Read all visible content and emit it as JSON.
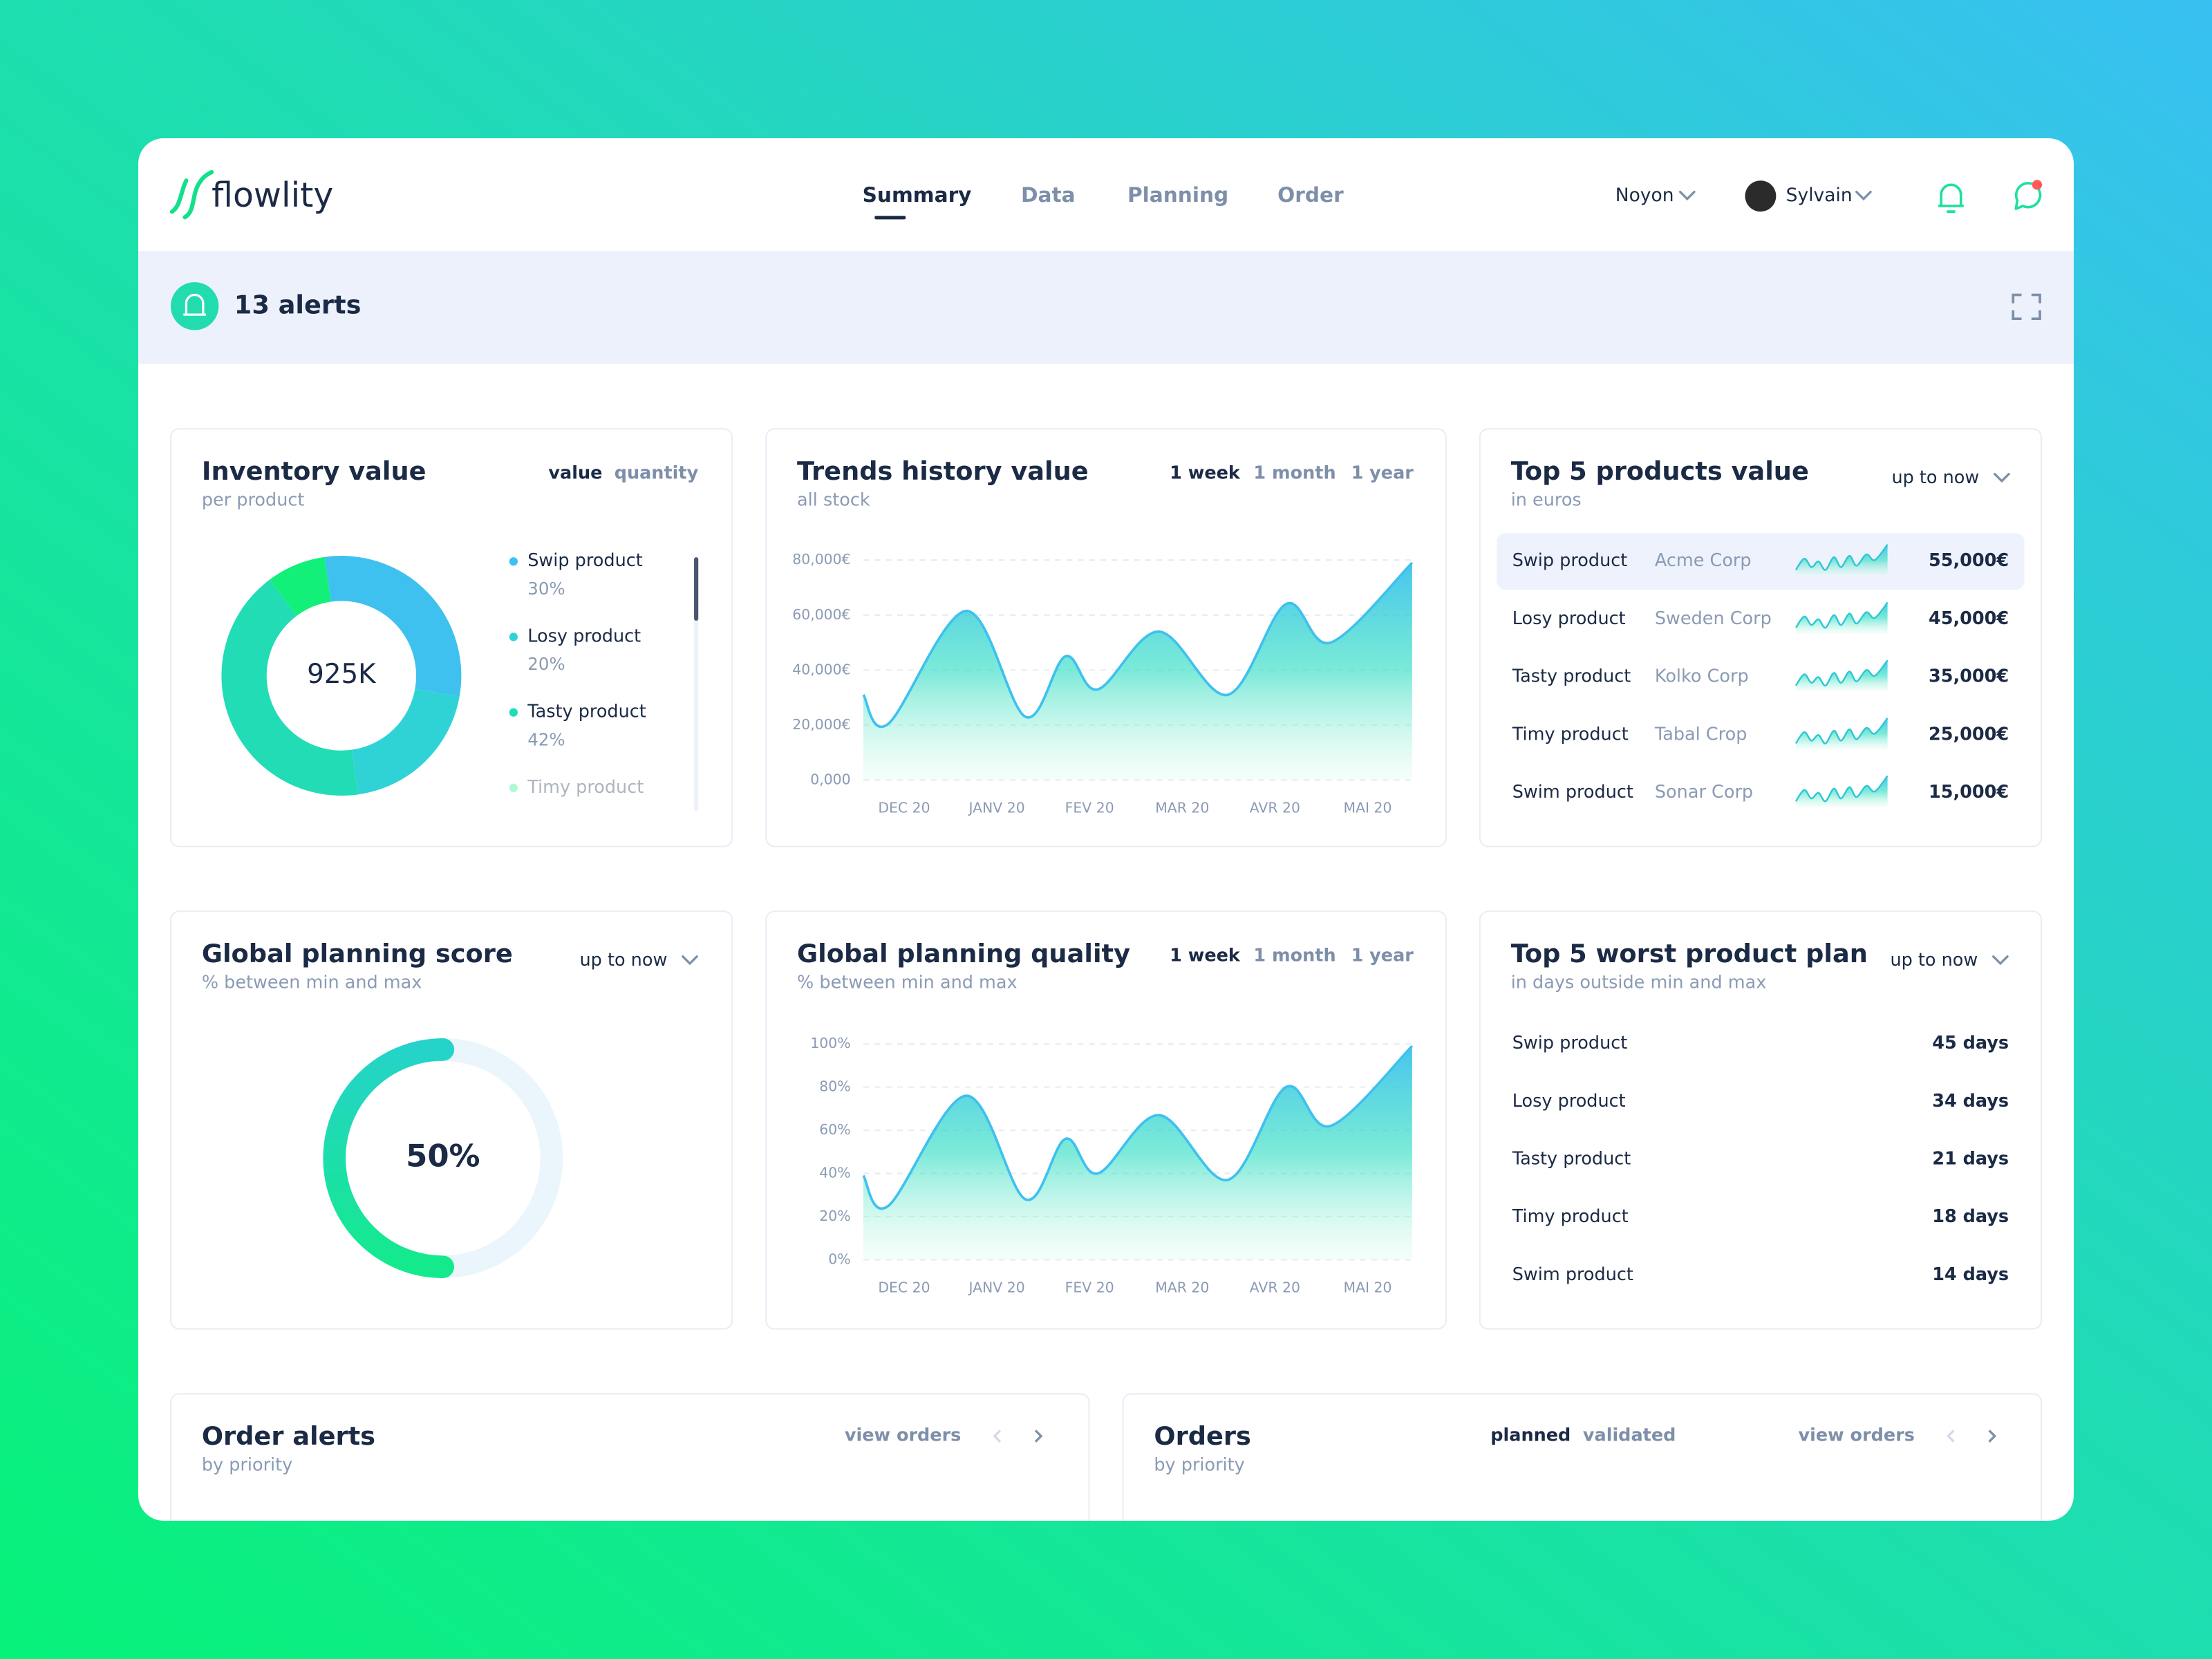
{
  "header": {
    "logo": "flowlity",
    "tabs": [
      "Summary",
      "Data",
      "Planning",
      "Order"
    ],
    "location": "Noyon",
    "user": "Sylvain"
  },
  "alerts": {
    "label": "13 alerts"
  },
  "inventory": {
    "title": "Inventory value",
    "subtitle": "per product",
    "toggles": [
      "value",
      "quantity"
    ],
    "total": "925K",
    "chart_data": {
      "type": "donut",
      "categories": [
        "Swip product",
        "Losy product",
        "Tasty product",
        "Timy product"
      ],
      "values": [
        30,
        20,
        42,
        8
      ],
      "value_labels": [
        "30%",
        "20%",
        "42%",
        null
      ],
      "colors": [
        "#3ec1ef",
        "#2fd3d6",
        "#22dcb6",
        "#12f07a"
      ]
    }
  },
  "trends": {
    "title": "Trends history value",
    "subtitle": "all stock",
    "ranges": [
      "1 week",
      "1 month",
      "1 year"
    ],
    "chart_data": {
      "type": "area",
      "categories": [
        "DEC 20",
        "JANV 20",
        "FEV 20",
        "MAR 20",
        "AVR 20",
        "MAI 20"
      ],
      "xlim": [
        -0.44,
        5.48
      ],
      "ylim": [
        0,
        80000
      ],
      "yticks": [
        {
          "value": 0,
          "label": "0,000"
        },
        {
          "value": 20000,
          "label": "20,000€"
        },
        {
          "value": 40000,
          "label": "40,000€"
        },
        {
          "value": 60000,
          "label": "60,000€"
        },
        {
          "value": 80000,
          "label": "80,000€"
        }
      ],
      "grid": true,
      "series": [
        {
          "color": "#3ec1ef",
          "x": [
            -0.44,
            -0.17,
            0.67,
            1.31,
            1.74,
            2.09,
            2.75,
            3.49,
            4.12,
            4.6,
            5.48
          ],
          "values": [
            31000,
            20500,
            61500,
            23000,
            45000,
            33000,
            54000,
            31000,
            64000,
            50000,
            79000
          ]
        }
      ]
    }
  },
  "top_products": {
    "title": "Top 5 products value",
    "subtitle": "in euros",
    "period": "up to now",
    "rows": [
      {
        "product": "Swip product",
        "company": "Acme Corp",
        "value": "55,000€"
      },
      {
        "product": "Losy product",
        "company": "Sweden Corp",
        "value": "45,000€"
      },
      {
        "product": "Tasty product",
        "company": "Kolko Corp",
        "value": "35,000€"
      },
      {
        "product": "Timy product",
        "company": "Tabal Crop",
        "value": "25,000€"
      },
      {
        "product": "Swim product",
        "company": "Sonar Corp",
        "value": "15,000€"
      }
    ]
  },
  "planning_score": {
    "title": "Global planning score",
    "subtitle": "% between min and max",
    "period": "up to now",
    "chart_data": {
      "type": "gauge",
      "value": 50,
      "value_label": "50%",
      "ylim": [
        0,
        100
      ]
    }
  },
  "planning_quality": {
    "title": "Global planning quality",
    "subtitle": "% between min and max",
    "ranges": [
      "1 week",
      "1 month",
      "1 year"
    ],
    "chart_data": {
      "type": "area",
      "categories": [
        "DEC 20",
        "JANV 20",
        "FEV 20",
        "MAR 20",
        "AVR 20",
        "MAI 20"
      ],
      "xlim": [
        -0.44,
        5.48
      ],
      "ylim": [
        0,
        100
      ],
      "yticks": [
        {
          "value": 0,
          "label": "0%"
        },
        {
          "value": 20,
          "label": "20%"
        },
        {
          "value": 40,
          "label": "40%"
        },
        {
          "value": 60,
          "label": "60%"
        },
        {
          "value": 80,
          "label": "80%"
        },
        {
          "value": 100,
          "label": "100%"
        }
      ],
      "grid": true,
      "series": [
        {
          "color": "#3ec1ef",
          "x": [
            -0.44,
            -0.17,
            0.67,
            1.31,
            1.74,
            2.09,
            2.75,
            3.49,
            4.12,
            4.6,
            5.48
          ],
          "values": [
            39,
            25,
            76,
            28,
            56,
            40,
            67,
            37,
            80,
            62,
            99
          ]
        }
      ]
    }
  },
  "worst_plan": {
    "title": "Top 5 worst product plan",
    "subtitle": "in days outside min and max",
    "period": "up to now",
    "rows": [
      {
        "product": "Swip product",
        "value": "45 days"
      },
      {
        "product": "Losy product",
        "value": "34 days"
      },
      {
        "product": "Tasty product",
        "value": "21 days"
      },
      {
        "product": "Timy product",
        "value": "18 days"
      },
      {
        "product": "Swim product",
        "value": "14 days"
      }
    ]
  },
  "order_alerts": {
    "title": "Order alerts",
    "subtitle": "by priority",
    "link": "view orders"
  },
  "orders": {
    "title": "Orders",
    "subtitle": "by priority",
    "tabs": [
      "planned",
      "validated"
    ],
    "link": "view orders"
  }
}
